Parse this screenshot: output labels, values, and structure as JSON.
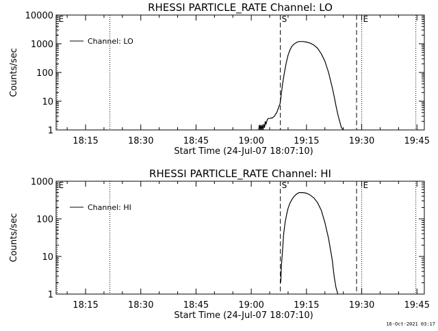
{
  "footer_timestamp": "16-Oct-2021 03:17",
  "chart_data": [
    {
      "type": "line",
      "title": "RHESSI PARTICLE_RATE Channel: LO",
      "xlabel": "Start Time (24-Jul-07 18:07:10)",
      "ylabel": "Counts/sec",
      "x_unit": "minutes since 18:00",
      "xlim": [
        7,
        107
      ],
      "ylim": [
        1,
        10000
      ],
      "yscale": "log",
      "x_ticks": [
        {
          "x": 15,
          "label": "18:15"
        },
        {
          "x": 30,
          "label": "18:30"
        },
        {
          "x": 45,
          "label": "18:45"
        },
        {
          "x": 60,
          "label": "19:00"
        },
        {
          "x": 75,
          "label": "19:15"
        },
        {
          "x": 90,
          "label": "19:30"
        },
        {
          "x": 105,
          "label": "19:45"
        }
      ],
      "y_ticks": [
        {
          "y": 1,
          "label": "1"
        },
        {
          "y": 10,
          "label": "10"
        },
        {
          "y": 100,
          "label": "100"
        },
        {
          "y": 1000,
          "label": "1000"
        },
        {
          "y": 10000,
          "label": "10000"
        }
      ],
      "legend": {
        "label": "Channel: LO",
        "position": "top-left"
      },
      "markers": [
        {
          "x": 7.3,
          "style": "dotted",
          "label": "E"
        },
        {
          "x": 21.6,
          "style": "dotted",
          "label": ""
        },
        {
          "x": 67.9,
          "style": "dashed",
          "label": "S"
        },
        {
          "x": 88.6,
          "style": "dashed",
          "label": ""
        },
        {
          "x": 90.0,
          "style": "dotted",
          "label": "E"
        },
        {
          "x": 104.7,
          "style": "dotted",
          "label": ""
        }
      ],
      "series": [
        {
          "name": "Channel: LO",
          "x": [
            62.0,
            62.2,
            62.4,
            62.6,
            62.8,
            63.0,
            63.2,
            63.4,
            63.6,
            63.8,
            64.0,
            64.3,
            64.6,
            64.9,
            65.3,
            65.7,
            66.0,
            66.3,
            66.6,
            66.9,
            67.2,
            67.5,
            67.8,
            68.1,
            68.5,
            69.0,
            69.5,
            70.0,
            70.5,
            71.0,
            71.5,
            72.0,
            72.5,
            73.0,
            73.5,
            74.0,
            75.0,
            76.0,
            77.0,
            78.0,
            79.0,
            80.0,
            81.0,
            82.0,
            82.5,
            83.0,
            83.5,
            84.0,
            84.5,
            85.0
          ],
          "y": [
            1,
            1.5,
            1,
            1.5,
            1,
            1.5,
            1,
            1.6,
            1.2,
            2,
            1.6,
            2.2,
            2.5,
            2.5,
            2.6,
            2.6,
            2.8,
            3,
            3.5,
            4,
            5,
            6.5,
            8,
            15,
            40,
            100,
            220,
            400,
            600,
            800,
            950,
            1050,
            1150,
            1200,
            1200,
            1200,
            1150,
            1050,
            900,
            700,
            450,
            250,
            100,
            30,
            15,
            7,
            3.5,
            2,
            1.2,
            1
          ]
        }
      ]
    },
    {
      "type": "line",
      "title": "RHESSI PARTICLE_RATE Channel: HI",
      "xlabel": "Start Time (24-Jul-07 18:07:10)",
      "ylabel": "Counts/sec",
      "x_unit": "minutes since 18:00",
      "xlim": [
        7,
        107
      ],
      "ylim": [
        1,
        1000
      ],
      "yscale": "log",
      "x_ticks": [
        {
          "x": 15,
          "label": "18:15"
        },
        {
          "x": 30,
          "label": "18:30"
        },
        {
          "x": 45,
          "label": "18:45"
        },
        {
          "x": 60,
          "label": "19:00"
        },
        {
          "x": 75,
          "label": "19:15"
        },
        {
          "x": 90,
          "label": "19:30"
        },
        {
          "x": 105,
          "label": "19:45"
        }
      ],
      "y_ticks": [
        {
          "y": 1,
          "label": "1"
        },
        {
          "y": 10,
          "label": "10"
        },
        {
          "y": 100,
          "label": "100"
        },
        {
          "y": 1000,
          "label": "1000"
        }
      ],
      "legend": {
        "label": "Channel: HI",
        "position": "top-left"
      },
      "markers": [
        {
          "x": 7.3,
          "style": "dotted",
          "label": "E"
        },
        {
          "x": 21.6,
          "style": "dotted",
          "label": ""
        },
        {
          "x": 67.9,
          "style": "dashed",
          "label": "S"
        },
        {
          "x": 88.6,
          "style": "dashed",
          "label": ""
        },
        {
          "x": 90.0,
          "style": "dotted",
          "label": "E"
        },
        {
          "x": 104.7,
          "style": "dotted",
          "label": ""
        }
      ],
      "series": [
        {
          "name": "Channel: HI",
          "x": [
            68.0,
            68.2,
            68.5,
            68.8,
            69.2,
            69.6,
            70.0,
            70.5,
            71.0,
            71.5,
            72.0,
            72.5,
            73.0,
            73.5,
            74.0,
            75.0,
            76.0,
            77.0,
            78.0,
            79.0,
            80.0,
            81.0,
            82.0,
            82.5,
            83.0,
            83.5
          ],
          "y": [
            2,
            6,
            15,
            40,
            80,
            130,
            190,
            260,
            320,
            380,
            430,
            470,
            500,
            500,
            500,
            480,
            430,
            360,
            270,
            170,
            80,
            30,
            8,
            3,
            1.5,
            1
          ]
        }
      ]
    }
  ]
}
